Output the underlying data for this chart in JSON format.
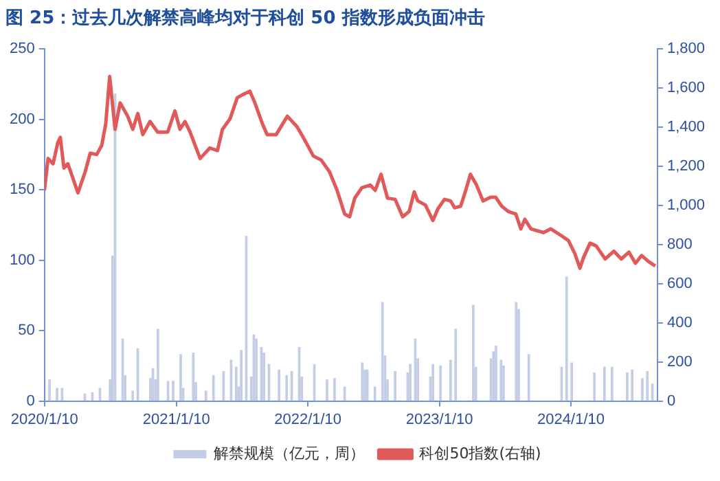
{
  "chart_data": {
    "type": "bar",
    "title": "图 25：过去几次解禁高峰均对于科创 50 指数形成负面冲击",
    "xlim": [
      "2020-01-10",
      "2024-09-06"
    ],
    "xticks": [
      {
        "value": "2020-01-10",
        "label": "2020/1/10"
      },
      {
        "value": "2021-01-10",
        "label": "2021/1/10"
      },
      {
        "value": "2022-01-10",
        "label": "2022/1/10"
      },
      {
        "value": "2023-01-10",
        "label": "2023/1/10"
      },
      {
        "value": "2024-01-10",
        "label": "2024/1/10"
      }
    ],
    "ylim": [
      0,
      250
    ],
    "yticks": [
      0,
      50,
      100,
      150,
      200,
      250
    ],
    "y2lim": [
      0,
      1800
    ],
    "y2ticks": [
      0,
      200,
      400,
      600,
      800,
      {
        "value": 1000,
        "label": "1,000"
      },
      {
        "value": 1200,
        "label": "1,200"
      },
      {
        "value": 1400,
        "label": "1,400"
      },
      {
        "value": 1600,
        "label": "1,600"
      },
      {
        "value": 1800,
        "label": "1,800"
      }
    ],
    "grid": false,
    "legend": "bottom",
    "series": [
      {
        "name": "解禁规模（亿元，周）",
        "color": "#c3cde6",
        "x": [
          "2020-01-24",
          "2020-02-14",
          "2020-02-28",
          "2020-05-01",
          "2020-05-22",
          "2020-06-12",
          "2020-07-10",
          "2020-07-17",
          "2020-07-24",
          "2020-08-14",
          "2020-08-21",
          "2020-09-11",
          "2020-09-25",
          "2020-10-30",
          "2020-11-06",
          "2020-11-13",
          "2020-11-20",
          "2020-12-18",
          "2021-01-01",
          "2021-01-22",
          "2021-01-29",
          "2021-02-26",
          "2021-03-05",
          "2021-04-02",
          "2021-04-23",
          "2021-05-21",
          "2021-06-11",
          "2021-06-25",
          "2021-07-02",
          "2021-07-09",
          "2021-07-23",
          "2021-08-06",
          "2021-08-13",
          "2021-08-20",
          "2021-09-03",
          "2021-09-10",
          "2021-09-24",
          "2021-10-22",
          "2021-11-12",
          "2021-11-26",
          "2021-12-17",
          "2021-12-24",
          "2022-01-28",
          "2022-03-04",
          "2022-03-25",
          "2022-04-22",
          "2022-06-10",
          "2022-06-17",
          "2022-06-24",
          "2022-07-15",
          "2022-08-05",
          "2022-08-12",
          "2022-08-19",
          "2022-09-09",
          "2022-10-14",
          "2022-10-21",
          "2022-11-04",
          "2022-11-11",
          "2022-12-16",
          "2022-12-23",
          "2023-01-13",
          "2023-02-10",
          "2023-02-24",
          "2023-04-14",
          "2023-04-21",
          "2023-06-02",
          "2023-06-09",
          "2023-06-16",
          "2023-06-30",
          "2023-07-07",
          "2023-08-11",
          "2023-08-18",
          "2023-09-15",
          "2023-12-15",
          "2023-12-29",
          "2024-01-12",
          "2024-03-15",
          "2024-04-12",
          "2024-05-03",
          "2024-06-14",
          "2024-06-28",
          "2024-07-26",
          "2024-08-09",
          "2024-08-23"
        ],
        "values": [
          15,
          9,
          9,
          5,
          6,
          9,
          15,
          103,
          218,
          44,
          18,
          7,
          37,
          16,
          23,
          15,
          51,
          14,
          14,
          33,
          9,
          34,
          13,
          7,
          18,
          21,
          29,
          24,
          10,
          36,
          117,
          17,
          47,
          44,
          38,
          34,
          26,
          22,
          18,
          21,
          38,
          17,
          26,
          15,
          16,
          10,
          27,
          22,
          22,
          10,
          70,
          32,
          15,
          21,
          20,
          26,
          44,
          30,
          17,
          26,
          25,
          29,
          51,
          68,
          24,
          30,
          35,
          39,
          29,
          25,
          70,
          65,
          33,
          24,
          88,
          27,
          20,
          24,
          24,
          20,
          22,
          16,
          21,
          12
        ]
      },
      {
        "name": "科创50指数(右轴)",
        "type": "line",
        "axis": "y2",
        "color": "#e05a5a",
        "x": [
          "2020-01-10",
          "2020-01-20",
          "2020-02-03",
          "2020-02-16",
          "2020-02-23",
          "2020-03-04",
          "2020-03-15",
          "2020-04-12",
          "2020-05-02",
          "2020-05-16",
          "2020-06-03",
          "2020-06-17",
          "2020-06-28",
          "2020-07-09",
          "2020-07-18",
          "2020-07-24",
          "2020-08-07",
          "2020-08-28",
          "2020-09-11",
          "2020-09-25",
          "2020-10-09",
          "2020-10-29",
          "2020-11-19",
          "2020-12-17",
          "2021-01-06",
          "2021-01-20",
          "2021-02-03",
          "2021-02-17",
          "2021-03-17",
          "2021-04-13",
          "2021-05-04",
          "2021-05-18",
          "2021-06-08",
          "2021-06-28",
          "2021-07-12",
          "2021-08-02",
          "2021-08-16",
          "2021-09-06",
          "2021-09-19",
          "2021-10-14",
          "2021-11-14",
          "2021-12-11",
          "2022-01-01",
          "2022-01-25",
          "2022-02-16",
          "2022-03-11",
          "2022-04-01",
          "2022-04-22",
          "2022-05-06",
          "2022-05-20",
          "2022-06-09",
          "2022-07-02",
          "2022-07-16",
          "2022-08-01",
          "2022-08-19",
          "2022-09-09",
          "2022-09-30",
          "2022-10-18",
          "2022-11-01",
          "2022-11-11",
          "2022-12-02",
          "2022-12-23",
          "2023-01-06",
          "2023-01-24",
          "2023-02-10",
          "2023-02-21",
          "2023-03-10",
          "2023-03-24",
          "2023-04-06",
          "2023-04-23",
          "2023-05-11",
          "2023-06-01",
          "2023-06-15",
          "2023-07-02",
          "2023-07-20",
          "2023-08-10",
          "2023-08-24",
          "2023-09-04",
          "2023-09-21",
          "2023-10-26",
          "2023-11-15",
          "2023-12-13",
          "2024-01-03",
          "2024-01-21",
          "2024-02-04",
          "2024-02-14",
          "2024-03-03",
          "2024-03-20",
          "2024-04-14",
          "2024-05-08",
          "2024-05-29",
          "2024-06-19",
          "2024-07-07",
          "2024-07-24",
          "2024-08-13",
          "2024-08-31"
        ],
        "values": [
          1077,
          1240,
          1213,
          1321,
          1348,
          1191,
          1213,
          1064,
          1172,
          1267,
          1260,
          1307,
          1416,
          1659,
          1497,
          1389,
          1524,
          1456,
          1389,
          1470,
          1362,
          1429,
          1375,
          1375,
          1483,
          1389,
          1429,
          1375,
          1240,
          1294,
          1280,
          1389,
          1443,
          1551,
          1565,
          1584,
          1524,
          1416,
          1362,
          1362,
          1456,
          1402,
          1335,
          1253,
          1232,
          1172,
          1077,
          956,
          942,
          1037,
          1091,
          1104,
          1077,
          1159,
          1037,
          1031,
          942,
          969,
          1069,
          1023,
          1002,
          923,
          983,
          1031,
          1023,
          988,
          996,
          1077,
          1159,
          1104,
          1023,
          1042,
          1042,
          996,
          969,
          956,
          880,
          929,
          880,
          861,
          880,
          847,
          820,
          753,
          679,
          734,
          807,
          793,
          726,
          766,
          726,
          761,
          704,
          744,
          712,
          690
        ]
      }
    ]
  }
}
